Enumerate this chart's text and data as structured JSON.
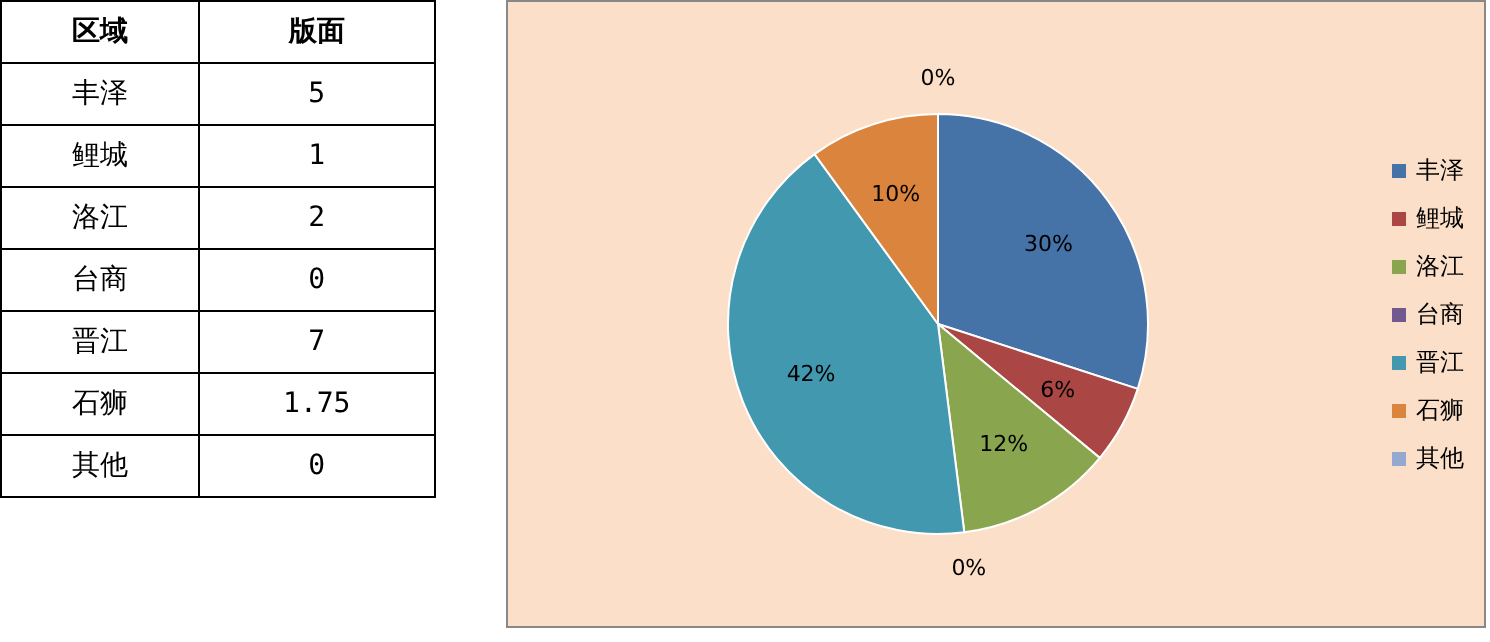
{
  "chart_data": [
    {
      "type": "other",
      "annotations": [
        "区域",
        "版面"
      ],
      "categories": [
        "丰泽",
        "鲤城",
        "洛江",
        "台商",
        "晋江",
        "石狮",
        "其他"
      ],
      "values": [
        5,
        1,
        2,
        0,
        7,
        1.75,
        0
      ],
      "data_labels": true
    },
    {
      "type": "pie",
      "categories": [
        "丰泽",
        "鲤城",
        "洛江",
        "台商",
        "晋江",
        "石狮",
        "其他"
      ],
      "values": [
        30,
        6,
        12,
        0,
        42,
        10,
        0
      ],
      "value_labels": [
        "30%",
        "6%",
        "12%",
        "0%",
        "42%",
        "10%",
        "0%"
      ],
      "colors": [
        "#4572a7",
        "#aa4643",
        "#89a54e",
        "#71588f",
        "#4198af",
        "#db843d",
        "#93a9cf"
      ],
      "legend": "right"
    }
  ]
}
